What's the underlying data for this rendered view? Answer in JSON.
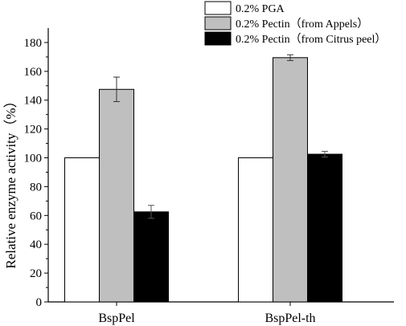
{
  "chart_data": {
    "type": "bar",
    "title": "",
    "xlabel": "",
    "ylabel": "Relative enzyme activity（%）",
    "ylim": [
      0,
      190
    ],
    "yticks": [
      0,
      20,
      40,
      60,
      80,
      100,
      120,
      140,
      160,
      180
    ],
    "grid": false,
    "legend_position": "top-right",
    "categories": [
      "BspPel",
      "BspPel-th"
    ],
    "series": [
      {
        "name": "0.2% PGA",
        "color": "#ffffff",
        "values": [
          100,
          100
        ],
        "errors": [
          0,
          0
        ]
      },
      {
        "name": "0.2% Pectin（from Appels）",
        "color": "#bfbfbf",
        "values": [
          147.5,
          169.5
        ],
        "errors": [
          8.5,
          2
        ]
      },
      {
        "name": "0.2% Pectin（from Citrus peel）",
        "color": "#000000",
        "values": [
          62.5,
          102.5
        ],
        "errors": [
          4.5,
          2
        ]
      }
    ]
  }
}
